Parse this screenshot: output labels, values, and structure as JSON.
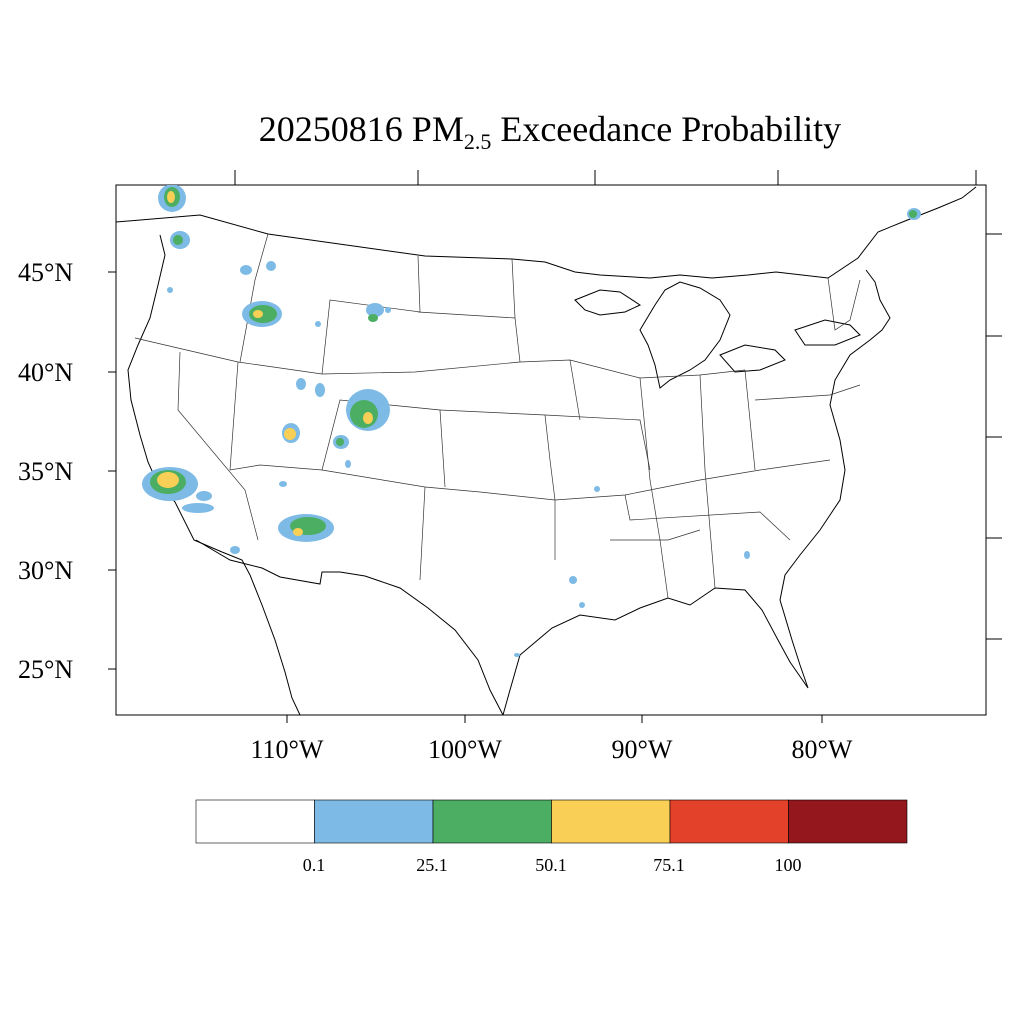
{
  "title": {
    "date": "20250816",
    "prefix": "PM",
    "subscript": "2.5",
    "suffix": "Exceedance Probability"
  },
  "axes": {
    "latitude_labels": [
      "45°N",
      "40°N",
      "35°N",
      "30°N",
      "25°N"
    ],
    "longitude_labels": [
      "110°W",
      "100°W",
      "90°W",
      "80°W"
    ]
  },
  "colorbar": {
    "colors": [
      "#ffffff",
      "#7dbbe6",
      "#4cae62",
      "#f9cf55",
      "#e3412a",
      "#94171d"
    ],
    "labels": [
      "0.1",
      "25.1",
      "50.1",
      "75.1",
      "100"
    ]
  },
  "probability_areas": [
    {
      "region": "Washington (north)",
      "max_class": "75.1"
    },
    {
      "region": "Washington (Olympic)",
      "max_class": "50.1"
    },
    {
      "region": "Idaho",
      "max_class": "75.1"
    },
    {
      "region": "Wyoming",
      "max_class": "50.1"
    },
    {
      "region": "Utah",
      "max_class": "75.1"
    },
    {
      "region": "Colorado",
      "max_class": "75.1"
    },
    {
      "region": "Southern California",
      "max_class": "75.1"
    },
    {
      "region": "Arizona",
      "max_class": "75.1"
    },
    {
      "region": "Maine",
      "max_class": "50.1"
    }
  ]
}
